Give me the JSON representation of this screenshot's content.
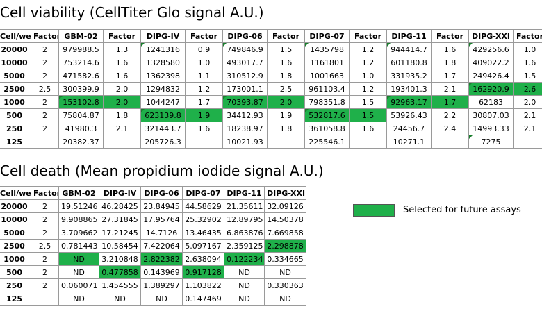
{
  "viability": {
    "title": "Cell viability (CellTiter Glo signal A.U.)",
    "headers": [
      "Cell/well",
      "Factor",
      "GBM-02",
      "Factor",
      "DIPG-IV",
      "Factor",
      "DIPG-06",
      "Factor",
      "DIPG-07",
      "Factor",
      "DIPG-11",
      "Factor",
      "DIPG-XXI",
      "Factor"
    ],
    "rows": [
      [
        "20000",
        "2",
        "979988.5",
        "1.3",
        "1241316",
        "0.9",
        "749846.9",
        "1.5",
        "1435798",
        "1.2",
        "944414.7",
        "1.6",
        "429256.6",
        "1.0"
      ],
      [
        "10000",
        "2",
        "753214.6",
        "1.6",
        "1328580",
        "1.0",
        "493017.7",
        "1.6",
        "1161801",
        "1.2",
        "601180.8",
        "1.8",
        "409022.2",
        "1.6"
      ],
      [
        "5000",
        "2",
        "471582.6",
        "1.6",
        "1362398",
        "1.1",
        "310512.9",
        "1.8",
        "1001663",
        "1.0",
        "331935.2",
        "1.7",
        "249426.4",
        "1.5"
      ],
      [
        "2500",
        "2.5",
        "300399.9",
        "2.0",
        "1294832",
        "1.2",
        "173001.1",
        "2.5",
        "961103.4",
        "1.2",
        "193401.3",
        "2.1",
        "162920.9",
        "2.6"
      ],
      [
        "1000",
        "2",
        "153102.8",
        "2.0",
        "1044247",
        "1.7",
        "70393.87",
        "2.0",
        "798351.8",
        "1.5",
        "92963.17",
        "1.7",
        "62183",
        "2.0"
      ],
      [
        "500",
        "2",
        "75804.87",
        "1.8",
        "623139.8",
        "1.9",
        "34412.93",
        "1.9",
        "532817.6",
        "1.5",
        "53926.43",
        "2.2",
        "30807.03",
        "2.1"
      ],
      [
        "250",
        "2",
        "41980.3",
        "2.1",
        "321443.7",
        "1.6",
        "18238.97",
        "1.8",
        "361058.8",
        "1.6",
        "24456.7",
        "2.4",
        "14993.33",
        "2.1"
      ],
      [
        "125",
        "",
        "20382.37",
        "",
        "205726.3",
        "",
        "10021.93",
        "",
        "225546.1",
        "",
        "10271.1",
        "",
        "7275",
        ""
      ]
    ]
  },
  "death": {
    "title": "Cell death (Mean propidium iodide signal A.U.)",
    "headers": [
      "Cell/well",
      "Factor",
      "GBM-02",
      "DIPG-IV",
      "DIPG-06",
      "DIPG-07",
      "DIPG-11",
      "DIPG-XXI"
    ],
    "rows": [
      [
        "20000",
        "2",
        "19.51246",
        "46.28425",
        "23.84945",
        "44.58629",
        "21.35611",
        "32.09126"
      ],
      [
        "10000",
        "2",
        "9.908865",
        "27.31845",
        "17.95764",
        "25.32902",
        "12.89795",
        "14.50378"
      ],
      [
        "5000",
        "2",
        "3.709662",
        "17.21245",
        "14.7126",
        "13.46435",
        "6.863876",
        "7.669858"
      ],
      [
        "2500",
        "2.5",
        "0.781443",
        "10.58454",
        "7.422064",
        "5.097167",
        "2.359125",
        "2.298878"
      ],
      [
        "1000",
        "2",
        "ND",
        "3.210848",
        "2.822382",
        "2.638094",
        "0.122234",
        "0.334665"
      ],
      [
        "500",
        "2",
        "ND",
        "0.477858",
        "0.143969",
        "0.917128",
        "ND",
        "ND"
      ],
      [
        "250",
        "2",
        "0.060071",
        "1.454555",
        "1.389297",
        "1.103822",
        "ND",
        "0.330363"
      ],
      [
        "125",
        "",
        "ND",
        "ND",
        "ND",
        "0.147469",
        "ND",
        "ND"
      ]
    ]
  },
  "legend": {
    "label": "Selected for future assays",
    "color": "#1fb04a"
  },
  "highlight_color": "#1fb04a"
}
